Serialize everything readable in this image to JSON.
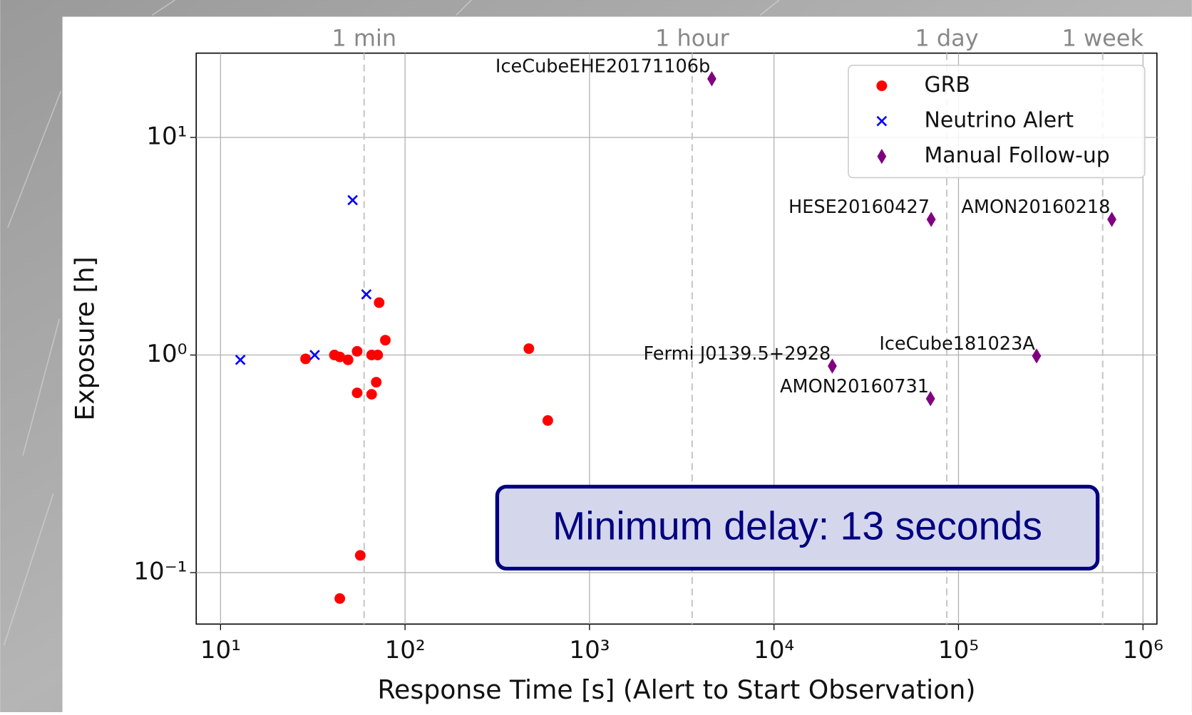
{
  "chart_data": {
    "type": "scatter",
    "xlabel": "Response Time [s] (Alert to Start Observation)",
    "ylabel": "Exposure [h]",
    "xscale": "log",
    "yscale": "log",
    "grid": true,
    "legend": "upper right",
    "xlim": [
      7.38,
      1190000
    ],
    "ylim": [
      0.058,
      24.4
    ],
    "xticks": [
      {
        "value": 10,
        "label": "10¹"
      },
      {
        "value": 100,
        "label": "10²"
      },
      {
        "value": 1000,
        "label": "10³"
      },
      {
        "value": 10000,
        "label": "10⁴"
      },
      {
        "value": 100000,
        "label": "10⁵"
      },
      {
        "value": 1000000,
        "label": "10⁶"
      }
    ],
    "yticks": [
      {
        "value": 0.1,
        "label": "10⁻¹"
      },
      {
        "value": 1,
        "label": "10⁰"
      },
      {
        "value": 10,
        "label": "10¹"
      }
    ],
    "top_ticks": [
      {
        "value": 60,
        "label": "1 min"
      },
      {
        "value": 3600,
        "label": "1 hour"
      },
      {
        "value": 86400,
        "label": "1 day"
      },
      {
        "value": 604800,
        "label": "1 week"
      }
    ],
    "annotation": "Minimum delay: 13 seconds",
    "series": [
      {
        "name": "GRB",
        "color": "#ff0000",
        "marker": "circle",
        "x": [
          28.9,
          41.4,
          44.3,
          49.1,
          55,
          55,
          65.9,
          65.9,
          71.1,
          69.8,
          72.4,
          78.2,
          57.2,
          44.3,
          469,
          594
        ],
        "values": [
          0.96,
          1.0,
          0.98,
          0.95,
          1.04,
          0.67,
          0.66,
          1.0,
          1.0,
          0.75,
          1.74,
          1.17,
          0.12,
          0.076,
          1.07,
          0.5
        ]
      },
      {
        "name": "Neutrino Alert",
        "color": "#0000ff",
        "marker": "x",
        "x": [
          12.8,
          32.4,
          52,
          61.7
        ],
        "values": [
          0.95,
          1.0,
          5.15,
          1.9
        ]
      },
      {
        "name": "Manual Follow-up",
        "color": "#800080",
        "marker": "diamond",
        "x": [
          4600,
          71100,
          678000,
          20700,
          265000,
          70500
        ],
        "values": [
          18.6,
          4.2,
          4.2,
          0.89,
          0.99,
          0.63
        ],
        "point_labels": [
          "IceCubeEHE20171106b",
          "HESE20160427",
          "AMON20160218",
          "Fermi J0139.5+2928",
          "IceCube181023A",
          "AMON20160731"
        ]
      }
    ]
  }
}
